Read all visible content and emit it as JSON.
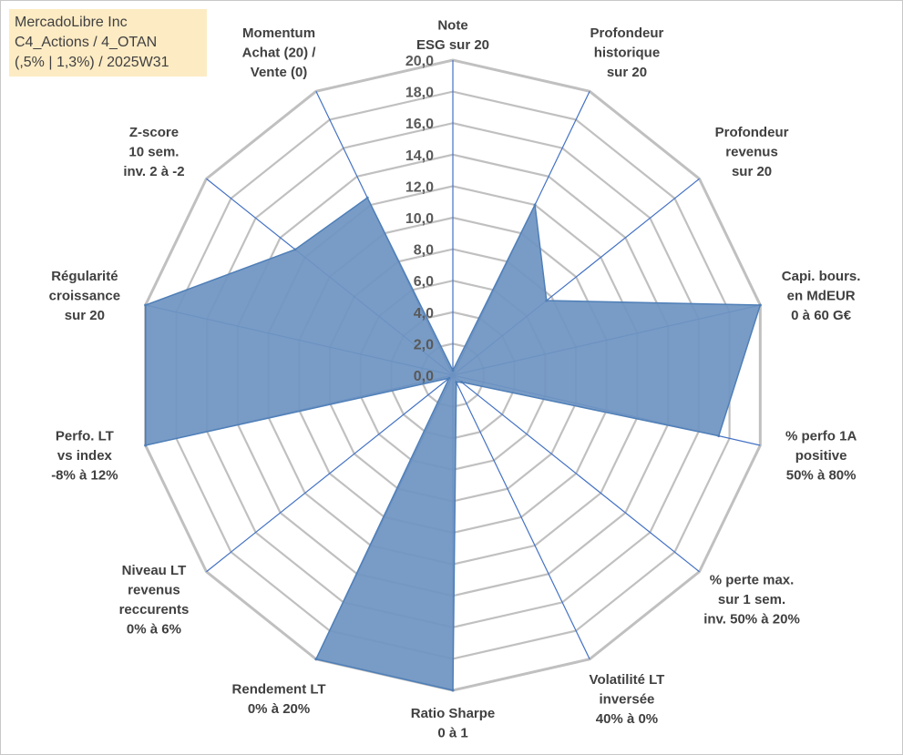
{
  "title_box": {
    "line1": "MercadoLibre Inc",
    "line2": "C4_Actions / 4_OTAN",
    "line3": "(,5% | 1,3%) / 2025W31"
  },
  "chart_data": {
    "type": "radar",
    "rmin": 0,
    "rmax": 20,
    "tick_step": 2,
    "tick_labels": [
      "0,0",
      "2,0",
      "4,0",
      "6,0",
      "8,0",
      "10,0",
      "12,0",
      "14,0",
      "16,0",
      "18,0",
      "20,0"
    ],
    "axes": [
      {
        "label": [
          "Note",
          "ESG sur 20"
        ],
        "value": 0.3
      },
      {
        "label": [
          "Profondeur",
          "historique",
          "sur 20"
        ],
        "value": 12.0
      },
      {
        "label": [
          "Profondeur",
          "revenus",
          "sur 20"
        ],
        "value": 7.6
      },
      {
        "label": [
          "Capi. bours.",
          "en MdEUR",
          "0 à 60 G€"
        ],
        "value": 20.0
      },
      {
        "label": [
          "% perfo 1A",
          "positive",
          "50% à 80%"
        ],
        "value": 17.3
      },
      {
        "label": [
          "% perte max.",
          "sur 1 sem.",
          "inv. 50% à 20%"
        ],
        "value": 0.7
      },
      {
        "label": [
          "Volatilité LT",
          "inversée",
          "40% à 0%"
        ],
        "value": 0.5
      },
      {
        "label": [
          "Ratio Sharpe",
          "0 à 1"
        ],
        "value": 20.0
      },
      {
        "label": [
          "Rendement LT",
          "0% à 20%"
        ],
        "value": 20.0
      },
      {
        "label": [
          "Niveau LT",
          "revenus",
          "reccurents",
          "0% à 6%"
        ],
        "value": 0.3
      },
      {
        "label": [
          "Perfo. LT",
          "vs index",
          "-8% à 12%"
        ],
        "value": 20.0
      },
      {
        "label": [
          "Régularité",
          "croissance",
          "sur 20"
        ],
        "value": 20.0
      },
      {
        "label": [
          "Z-score",
          "10 sem.",
          "inv. 2 à -2"
        ],
        "value": 12.8
      },
      {
        "label": [
          "Momentum",
          "Achat (20) /",
          "Vente (0)"
        ],
        "value": 12.5
      }
    ],
    "colors": {
      "fill": "#6f95c2",
      "stroke": "#4f7fb8",
      "spoke": "#4472c4",
      "grid": "#c0c0c0"
    }
  }
}
